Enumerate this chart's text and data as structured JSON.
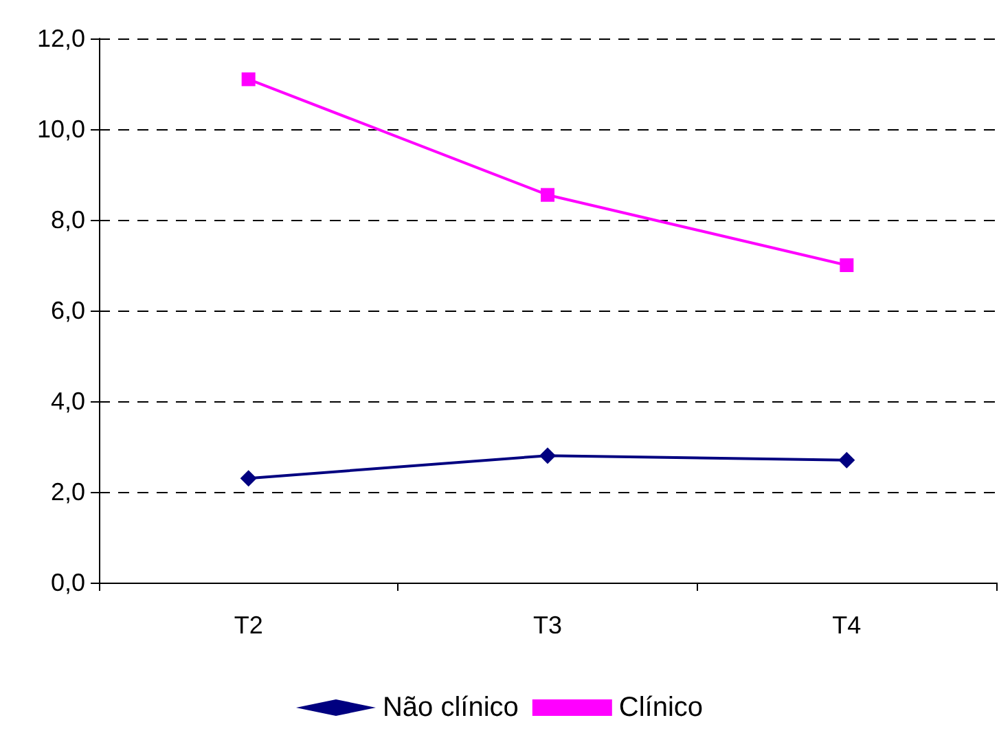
{
  "chart_data": {
    "type": "line",
    "categories": [
      "T2",
      "T3",
      "T4"
    ],
    "series": [
      {
        "name": "Não clínico",
        "color": "#000080",
        "marker": "diamond",
        "values": [
          2.3,
          2.8,
          2.7
        ]
      },
      {
        "name": "Clínico",
        "color": "#ff00ff",
        "marker": "square",
        "values": [
          11.1,
          8.55,
          7.0
        ]
      }
    ],
    "ylim": [
      0,
      12
    ],
    "yticks": [
      {
        "value": 0,
        "label": "0,0"
      },
      {
        "value": 2,
        "label": "2,0"
      },
      {
        "value": 4,
        "label": "4,0"
      },
      {
        "value": 6,
        "label": "6,0"
      },
      {
        "value": 8,
        "label": "8,0"
      },
      {
        "value": 10,
        "label": "10,0"
      },
      {
        "value": 12,
        "label": "12,0"
      }
    ],
    "grid": "y",
    "legend": "bottom",
    "line_style": "solid"
  }
}
